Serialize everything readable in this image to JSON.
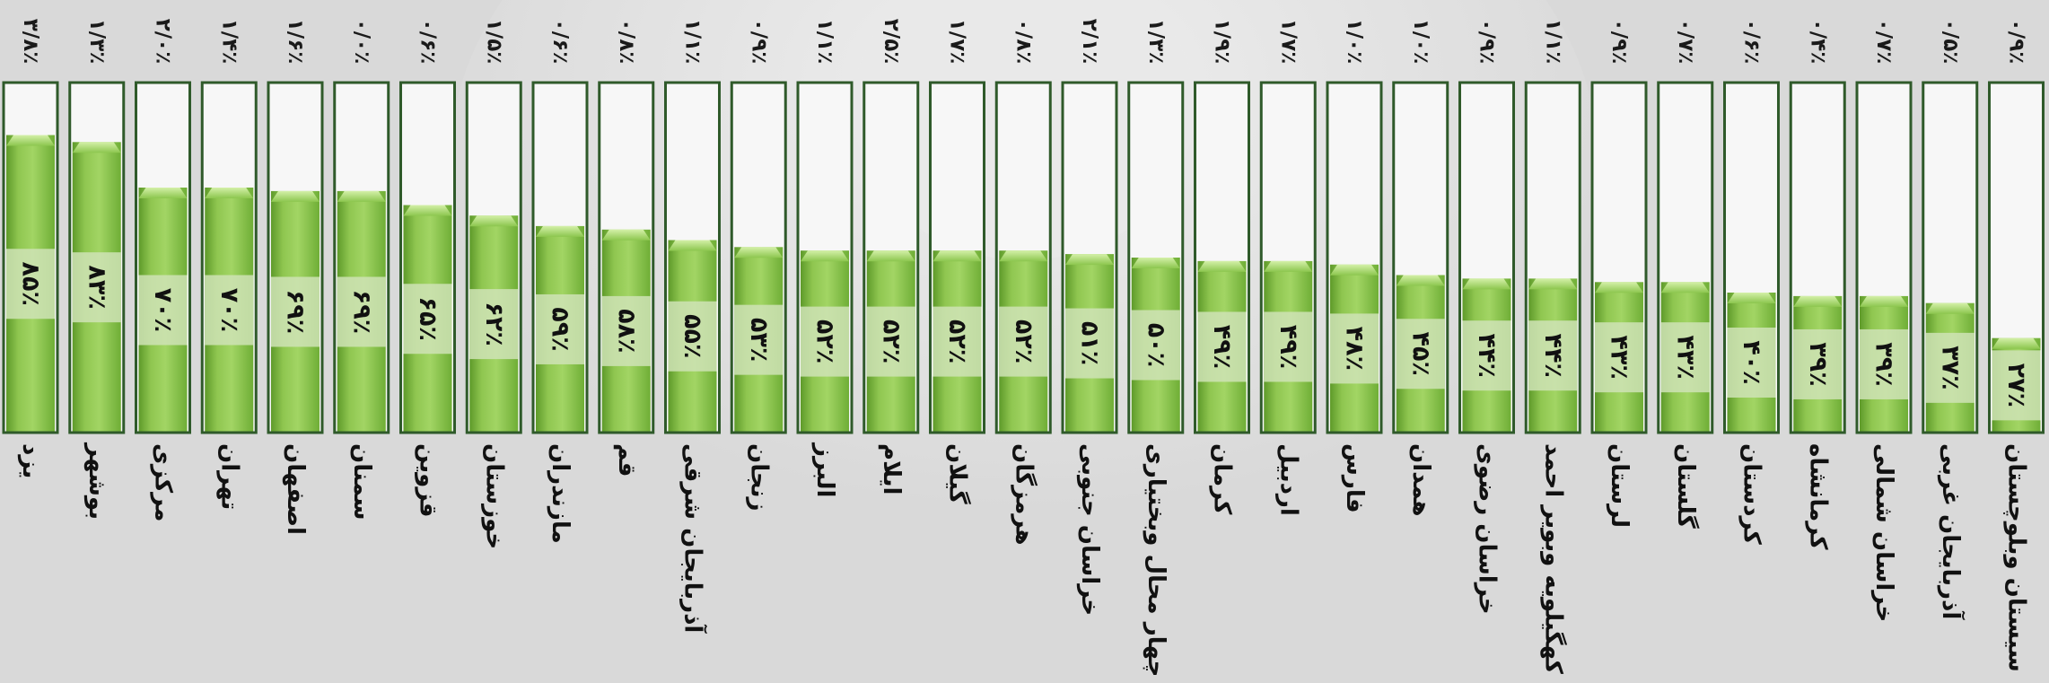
{
  "chart_data": {
    "type": "bar",
    "title": "",
    "xlabel": "",
    "ylabel": "",
    "ylim": [
      0,
      100
    ],
    "grid": false,
    "legend": "none",
    "categories": [
      "یزد",
      "بوشهر",
      "مرکزی",
      "تهران",
      "اصفهان",
      "سمنان",
      "قزوین",
      "خوزستان",
      "مازندران",
      "قم",
      "آذربایجان شرقی",
      "زنجان",
      "البرز",
      "ایلام",
      "گیلان",
      "هرمزگان",
      "خراسان جنوبی",
      "چهار محال وبختیاری",
      "کرمان",
      "اردبیل",
      "فارس",
      "همدان",
      "خراسان رضوی",
      "کهگیلویه وبویر احمد",
      "لرستان",
      "گلستان",
      "کردستان",
      "کرمانشاه",
      "خراسان شمالی",
      "آذربایجان غربی",
      "سیستان وبلوچستان"
    ],
    "values": [
      85,
      83,
      70,
      70,
      69,
      69,
      65,
      62,
      59,
      58,
      55,
      53,
      52,
      52,
      52,
      52,
      51,
      50,
      49,
      49,
      48,
      45,
      44,
      44,
      43,
      43,
      40,
      39,
      39,
      37,
      27
    ],
    "value_labels": [
      "۸۵٪",
      "۸۳٪",
      "۷۰٪",
      "۷۰٪",
      "۶۹٪",
      "۶۹٪",
      "۶۵٪",
      "۶۲٪",
      "۵۹٪",
      "۵۸٪",
      "۵۵٪",
      "۵۳٪",
      "۵۲٪",
      "۵۲٪",
      "۵۲٪",
      "۵۲٪",
      "۵۱٪",
      "۵۰٪",
      "۴۹٪",
      "۴۹٪",
      "۴۸٪",
      "۴۵٪",
      "۴۴٪",
      "۴۴٪",
      "۴۳٪",
      "۴۳٪",
      "۴۰٪",
      "۳۹٪",
      "۳۹٪",
      "۳۷٪",
      "۲۷٪"
    ],
    "top_labels": [
      "۳/۸٪",
      "۱/۳٪",
      "۲/۰٪",
      "۱/۴٪",
      "۱/۶٪",
      "۰/۰٪",
      "۰/۶٪",
      "۱/۵٪",
      "۰/۶٪",
      "۰/۸٪",
      "۱/۱٪",
      "۰/۹٪",
      "۱/۱٪",
      "۲/۵٪",
      "۱/۷٪",
      "۰/۸٪",
      "۲/۱٪",
      "۱/۳٪",
      "۱/۹٪",
      "۱/۷٪",
      "۱/۰٪",
      "۱/۰٪",
      "۰/۹٪",
      "۱/۱٪",
      "۰/۹٪",
      "۰/۷٪",
      "۰/۶٪",
      "۰/۴٪",
      "۰/۷٪",
      "۰/۵٪",
      "۰/۹٪"
    ],
    "colors": {
      "fill_light": "#9ed25f",
      "fill_dark": "#5e9a2a",
      "band": "#cfe3b6",
      "frame": "#2f5a2a",
      "tube_bg": "#f7f7f7",
      "background": "#d9d9d9"
    }
  }
}
